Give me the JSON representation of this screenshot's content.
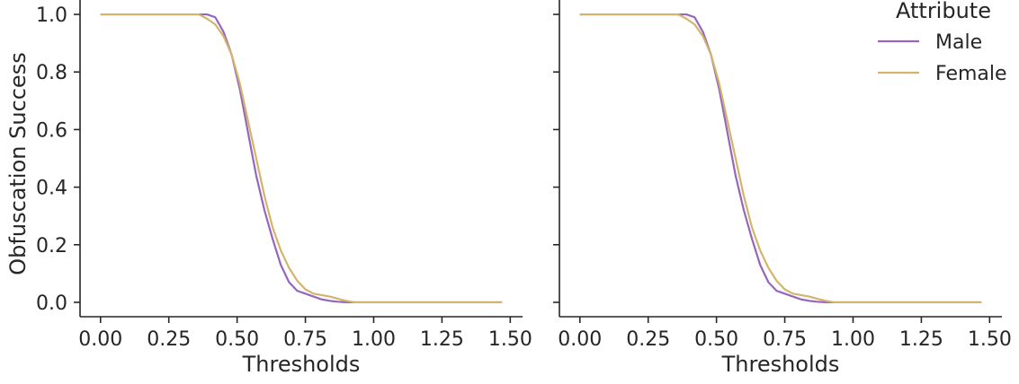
{
  "chart_data": [
    {
      "type": "line",
      "xlabel": "Thresholds",
      "ylabel": "Obfuscation Success",
      "xlim": [
        -0.075,
        1.545
      ],
      "ylim": [
        -0.05,
        1.05
      ],
      "xticks": [
        0.0,
        0.25,
        0.5,
        0.75,
        1.0,
        1.25,
        1.5
      ],
      "xtick_labels": [
        "0.00",
        "0.25",
        "0.50",
        "0.75",
        "1.00",
        "1.25",
        "1.50"
      ],
      "yticks": [
        0.0,
        0.2,
        0.4,
        0.6,
        0.8,
        1.0
      ],
      "ytick_labels": [
        "0.0",
        "0.2",
        "0.4",
        "0.6",
        "0.8",
        "1.0"
      ],
      "grid": false,
      "series": [
        {
          "name": "Male",
          "color": "#9467bd",
          "x": [
            0.0,
            0.36,
            0.39,
            0.42,
            0.45,
            0.48,
            0.51,
            0.54,
            0.57,
            0.6,
            0.63,
            0.66,
            0.69,
            0.72,
            0.75,
            0.78,
            0.81,
            0.84,
            0.87,
            0.9,
            1.0,
            1.25,
            1.47
          ],
          "y": [
            1.0,
            1.0,
            1.0,
            0.99,
            0.94,
            0.86,
            0.74,
            0.59,
            0.44,
            0.32,
            0.22,
            0.13,
            0.07,
            0.04,
            0.03,
            0.02,
            0.01,
            0.005,
            0.002,
            0.0,
            0.0,
            0.0,
            0.0
          ]
        },
        {
          "name": "Female",
          "color": "#d4b46a",
          "x": [
            0.0,
            0.36,
            0.39,
            0.42,
            0.45,
            0.48,
            0.51,
            0.54,
            0.57,
            0.6,
            0.63,
            0.66,
            0.69,
            0.72,
            0.75,
            0.78,
            0.81,
            0.84,
            0.87,
            0.9,
            0.93,
            1.0,
            1.25,
            1.47
          ],
          "y": [
            1.0,
            1.0,
            0.985,
            0.965,
            0.925,
            0.86,
            0.76,
            0.63,
            0.5,
            0.37,
            0.26,
            0.18,
            0.12,
            0.075,
            0.045,
            0.03,
            0.025,
            0.02,
            0.012,
            0.005,
            0.0,
            0.0,
            0.0,
            0.0
          ]
        }
      ]
    },
    {
      "type": "line",
      "xlabel": "Thresholds",
      "ylabel": "",
      "xlim": [
        -0.075,
        1.545
      ],
      "ylim": [
        -0.05,
        1.05
      ],
      "xticks": [
        0.0,
        0.25,
        0.5,
        0.75,
        1.0,
        1.25,
        1.5
      ],
      "xtick_labels": [
        "0.00",
        "0.25",
        "0.50",
        "0.75",
        "1.00",
        "1.25",
        "1.50"
      ],
      "yticks": [
        0.0,
        0.2,
        0.4,
        0.6,
        0.8,
        1.0
      ],
      "ytick_labels": [],
      "grid": false,
      "legend": {
        "title": "Attribute",
        "placement": "top-right",
        "entries": [
          "Male",
          "Female"
        ]
      },
      "series": [
        {
          "name": "Male",
          "color": "#9467bd",
          "x": [
            0.0,
            0.36,
            0.39,
            0.42,
            0.45,
            0.48,
            0.51,
            0.54,
            0.57,
            0.6,
            0.63,
            0.66,
            0.69,
            0.72,
            0.75,
            0.78,
            0.81,
            0.84,
            0.87,
            0.9,
            1.0,
            1.25,
            1.47
          ],
          "y": [
            1.0,
            1.0,
            1.0,
            0.99,
            0.94,
            0.86,
            0.74,
            0.59,
            0.44,
            0.32,
            0.22,
            0.13,
            0.07,
            0.04,
            0.03,
            0.02,
            0.01,
            0.005,
            0.002,
            0.0,
            0.0,
            0.0,
            0.0
          ]
        },
        {
          "name": "Female",
          "color": "#d4b46a",
          "x": [
            0.0,
            0.36,
            0.39,
            0.42,
            0.45,
            0.48,
            0.51,
            0.54,
            0.57,
            0.6,
            0.63,
            0.66,
            0.69,
            0.72,
            0.75,
            0.78,
            0.81,
            0.84,
            0.87,
            0.9,
            0.93,
            1.0,
            1.25,
            1.47
          ],
          "y": [
            1.0,
            1.0,
            0.985,
            0.965,
            0.925,
            0.86,
            0.76,
            0.63,
            0.5,
            0.37,
            0.26,
            0.18,
            0.12,
            0.075,
            0.045,
            0.03,
            0.025,
            0.02,
            0.012,
            0.005,
            0.0,
            0.0,
            0.0,
            0.0
          ]
        }
      ]
    }
  ]
}
